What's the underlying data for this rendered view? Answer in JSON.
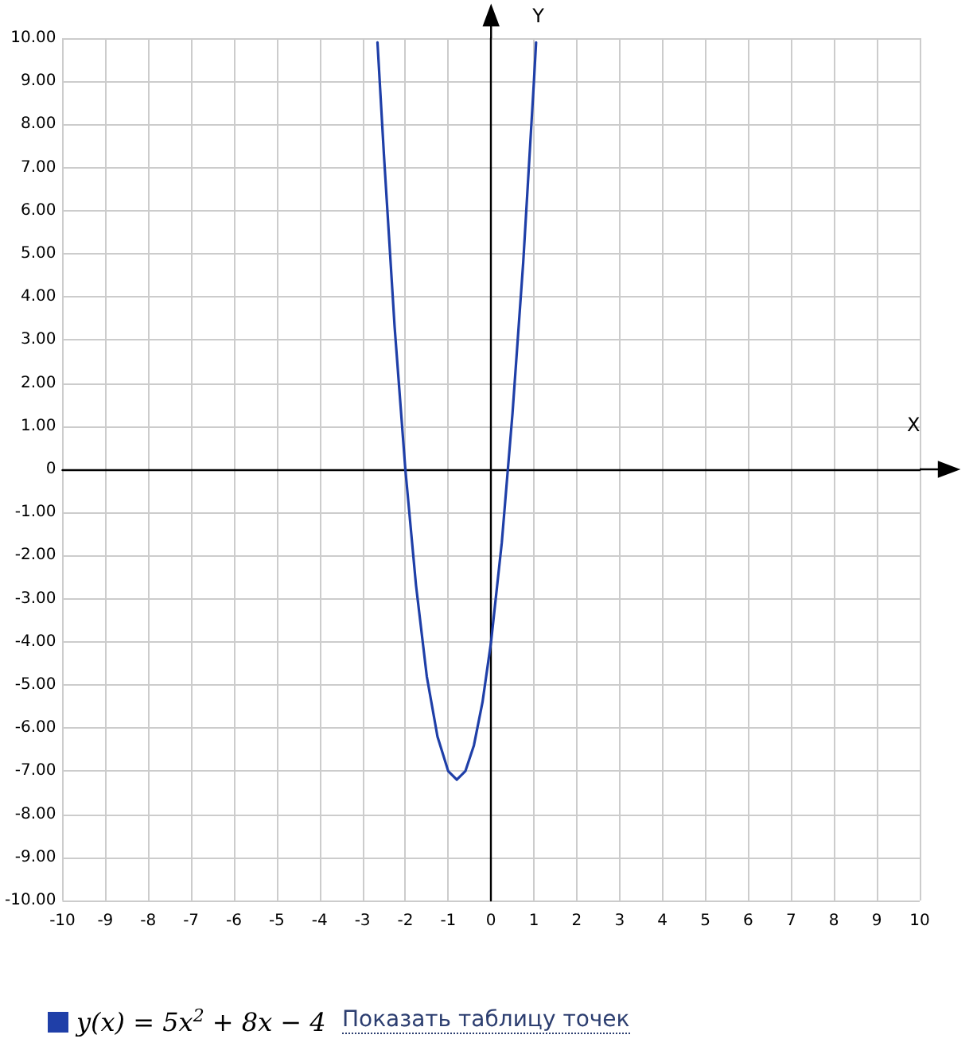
{
  "chart_data": {
    "type": "line",
    "xlabel": "X",
    "ylabel": "Y",
    "x": [
      -2.65,
      -2.5,
      -2.25,
      -2.0,
      -1.75,
      -1.5,
      -1.25,
      -1.0,
      -0.8,
      -0.6,
      -0.4,
      -0.2,
      0,
      0.25,
      0.5,
      0.75,
      1.0,
      1.05
    ],
    "series": [
      {
        "name": "y(x) = 5x$^{2}$ + 8x − 4",
        "color": "#1f3fa8",
        "values": [
          9.9,
          7.3,
          3.3,
          0,
          -2.7,
          -4.8,
          -6.2,
          -7.0,
          -7.2,
          -7.0,
          -6.4,
          -5.4,
          -4.0,
          -1.7,
          1.3,
          4.8,
          9.0,
          9.9
        ]
      }
    ],
    "xlim": [
      -10,
      10
    ],
    "xticks": [
      -10,
      -9,
      -8,
      -7,
      -6,
      -5,
      -4,
      -3,
      -2,
      -1,
      0,
      1,
      2,
      3,
      4,
      5,
      6,
      7,
      8,
      9,
      10
    ],
    "ylim": [
      -10,
      10
    ],
    "yticks": [
      {
        "value": -10,
        "label": "-10.00"
      },
      {
        "value": -9,
        "label": "-9.00"
      },
      {
        "value": -8,
        "label": "-8.00"
      },
      {
        "value": -7,
        "label": "-7.00"
      },
      {
        "value": -6,
        "label": "-6.00"
      },
      {
        "value": -5,
        "label": "-5.00"
      },
      {
        "value": -4,
        "label": "-4.00"
      },
      {
        "value": -3,
        "label": "-3.00"
      },
      {
        "value": -2,
        "label": "-2.00"
      },
      {
        "value": -1,
        "label": "-1.00"
      },
      {
        "value": 0,
        "label": "0"
      },
      {
        "value": 1,
        "label": "1.00"
      },
      {
        "value": 2,
        "label": "2.00"
      },
      {
        "value": 3,
        "label": "3.00"
      },
      {
        "value": 4,
        "label": "4.00"
      },
      {
        "value": 5,
        "label": "5.00"
      },
      {
        "value": 6,
        "label": "6.00"
      },
      {
        "value": 7,
        "label": "7.00"
      },
      {
        "value": 8,
        "label": "8.00"
      },
      {
        "value": 9,
        "label": "9.00"
      },
      {
        "value": 10,
        "label": "10.00"
      }
    ],
    "grid": true,
    "legend": "bottom left",
    "marker": "none",
    "line_style": "solid",
    "annotations": [
      "Показать таблицу точек"
    ]
  }
}
